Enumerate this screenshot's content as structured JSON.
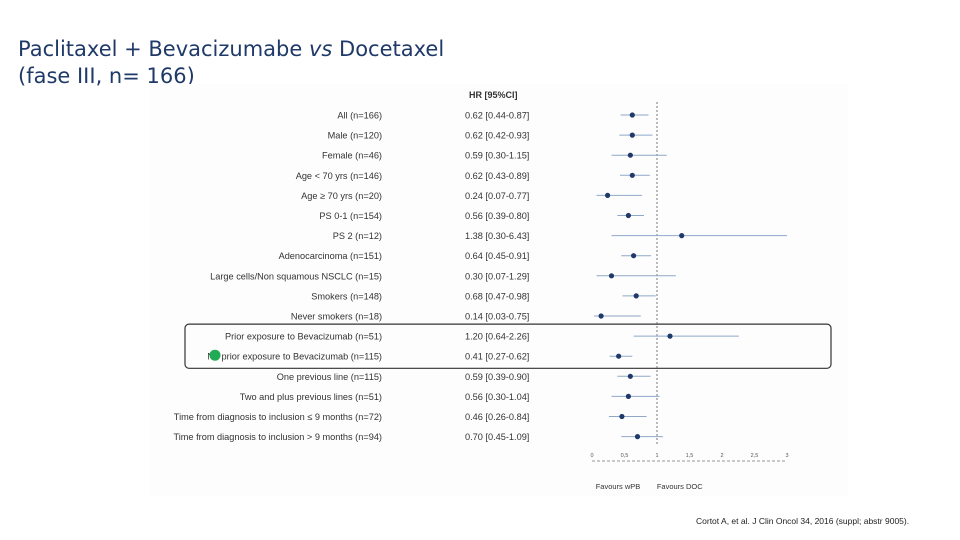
{
  "title": {
    "line1_pre": "Paclitaxel + Bevacizumabe ",
    "line1_vs": "vs",
    "line1_post": " Docetaxel",
    "line2": "(fase III, n= 166)"
  },
  "citation": "Cortot A, et al. J Clin Oncol 34, 2016 (suppl; abstr 9005).",
  "chart_data": {
    "type": "forest",
    "hr_header": "HR [95%CI]",
    "reference_line": 1,
    "xlim": [
      0,
      3
    ],
    "x_ticks": [
      {
        "value": 0,
        "label": "0"
      },
      {
        "value": 0.5,
        "label": "0,5"
      },
      {
        "value": 1,
        "label": "1"
      },
      {
        "value": 1.5,
        "label": "1,5"
      },
      {
        "value": 2,
        "label": "2"
      },
      {
        "value": 2.5,
        "label": "2,5"
      },
      {
        "value": 3,
        "label": "3"
      }
    ],
    "favours_left": "Favours wPB",
    "favours_right": "Favours DOC",
    "marker_color": "#1f3a68",
    "ci_color": "#8fa8c8",
    "highlight_marker_color": "#22aa55",
    "highlight_rows": [
      11,
      12
    ],
    "rows": [
      {
        "label": "All (n=166)",
        "hr_text": "0.62 [0.44-0.87]",
        "hr": 0.62,
        "lo": 0.44,
        "hi": 0.87
      },
      {
        "label": "Male (n=120)",
        "hr_text": "0.62 [0.42-0.93]",
        "hr": 0.62,
        "lo": 0.42,
        "hi": 0.93
      },
      {
        "label": "Female (n=46)",
        "hr_text": "0.59 [0.30-1.15]",
        "hr": 0.59,
        "lo": 0.3,
        "hi": 1.15
      },
      {
        "label": "Age < 70 yrs (n=146)",
        "hr_text": "0.62 [0.43-0.89]",
        "hr": 0.62,
        "lo": 0.43,
        "hi": 0.89
      },
      {
        "label": "Age ≥ 70 yrs (n=20)",
        "hr_text": "0.24 [0.07-0.77]",
        "hr": 0.24,
        "lo": 0.07,
        "hi": 0.77
      },
      {
        "label": "PS 0-1 (n=154)",
        "hr_text": "0.56 [0.39-0.80]",
        "hr": 0.56,
        "lo": 0.39,
        "hi": 0.8
      },
      {
        "label": "PS 2 (n=12)",
        "hr_text": "1.38 [0.30-6.43]",
        "hr": 1.38,
        "lo": 0.3,
        "hi": 6.43
      },
      {
        "label": "Adenocarcinoma (n=151)",
        "hr_text": "0.64 [0.45-0.91]",
        "hr": 0.64,
        "lo": 0.45,
        "hi": 0.91
      },
      {
        "label": "Large cells/Non squamous NSCLC (n=15)",
        "hr_text": "0.30 [0.07-1.29]",
        "hr": 0.3,
        "lo": 0.07,
        "hi": 1.29
      },
      {
        "label": "Smokers (n=148)",
        "hr_text": "0.68 [0.47-0.98]",
        "hr": 0.68,
        "lo": 0.47,
        "hi": 0.98
      },
      {
        "label": "Never smokers (n=18)",
        "hr_text": "0.14 [0.03-0.75]",
        "hr": 0.14,
        "lo": 0.03,
        "hi": 0.75
      },
      {
        "label": "Prior exposure to Bevacizumab (n=51)",
        "hr_text": "1.20 [0.64-2.26]",
        "hr": 1.2,
        "lo": 0.64,
        "hi": 2.26
      },
      {
        "label": "No prior exposure to Bevacizumab (n=115)",
        "hr_text": "0.41 [0.27-0.62]",
        "hr": 0.41,
        "lo": 0.27,
        "hi": 0.62
      },
      {
        "label": "One previous line (n=115)",
        "hr_text": "0.59 [0.39-0.90]",
        "hr": 0.59,
        "lo": 0.39,
        "hi": 0.9
      },
      {
        "label": "Two and plus previous lines (n=51)",
        "hr_text": "0.56 [0.30-1.04]",
        "hr": 0.56,
        "lo": 0.3,
        "hi": 1.04
      },
      {
        "label": "Time from diagnosis to inclusion ≤ 9 months (n=72)",
        "hr_text": "0.46 [0.26-0.84]",
        "hr": 0.46,
        "lo": 0.26,
        "hi": 0.84
      },
      {
        "label": "Time from diagnosis to inclusion > 9 months (n=94)",
        "hr_text": "0.70 [0.45-1.09]",
        "hr": 0.7,
        "lo": 0.45,
        "hi": 1.09
      }
    ]
  }
}
